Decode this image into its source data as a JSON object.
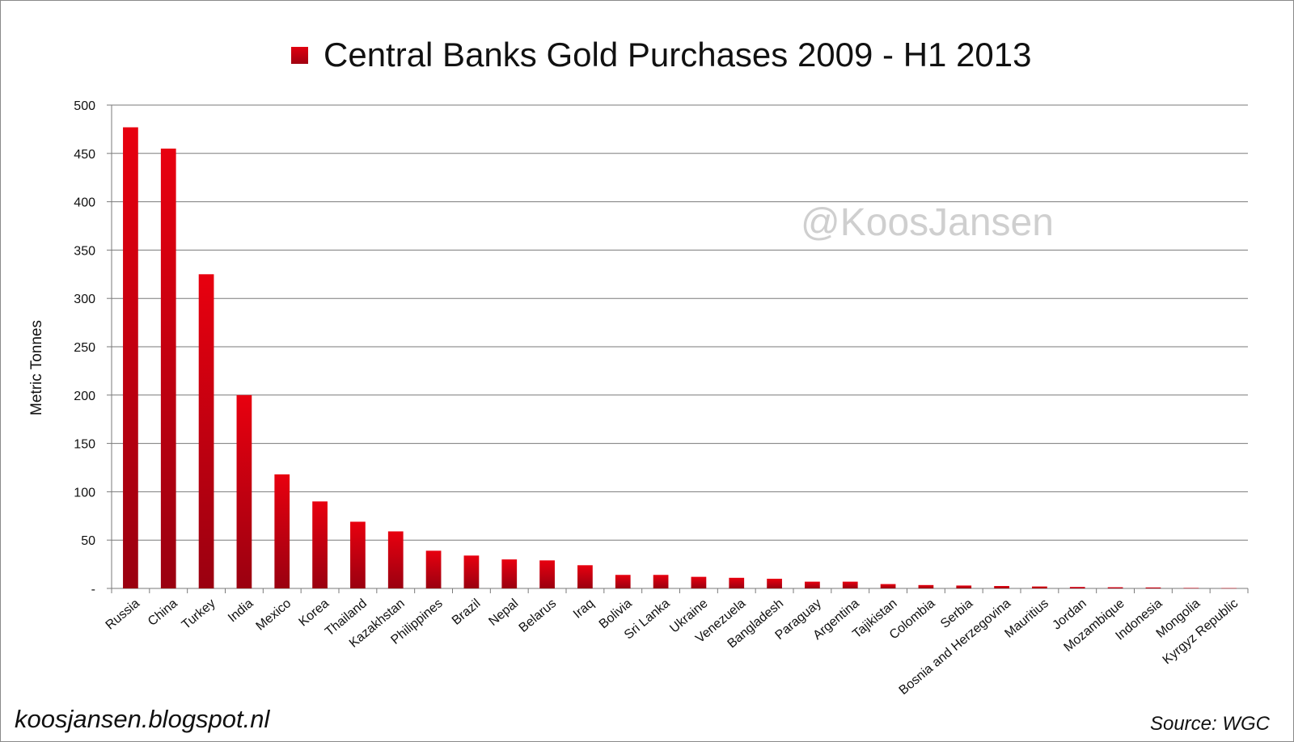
{
  "chart_data": {
    "type": "bar",
    "title": "Central Banks Gold Purchases 2009 - H1 2013",
    "legend": "Central Banks Gold Purchases 2009 - H1 2013",
    "ylabel": "Metric Tonnes",
    "xlabel": "",
    "ylim": [
      0,
      500
    ],
    "yticks": [
      {
        "v": 0,
        "label": "-"
      },
      {
        "v": 50,
        "label": "50"
      },
      {
        "v": 100,
        "label": "100"
      },
      {
        "v": 150,
        "label": "150"
      },
      {
        "v": 200,
        "label": "200"
      },
      {
        "v": 250,
        "label": "250"
      },
      {
        "v": 300,
        "label": "300"
      },
      {
        "v": 350,
        "label": "350"
      },
      {
        "v": 400,
        "label": "400"
      },
      {
        "v": 450,
        "label": "450"
      },
      {
        "v": 500,
        "label": "500"
      }
    ],
    "grid": true,
    "legend_position": "top",
    "bar_color_top": "#e8000f",
    "bar_color_bottom": "#9a0010",
    "categories": [
      "Russia",
      "China",
      "Turkey",
      "India",
      "Mexico",
      "Korea",
      "Thailand",
      "Kazakhstan",
      "Philippines",
      "Brazil",
      "Nepal",
      "Belarus",
      "Iraq",
      "Bolivia",
      "Sri Lanka",
      "Ukraine",
      "Venezuela",
      "Bangladesh",
      "Paraguay",
      "Argentina",
      "Tajikistan",
      "Colombia",
      "Serbia",
      "Bosnia and Herzegovina",
      "Mauritius",
      "Jordan",
      "Mozambique",
      "Indonesia",
      "Mongolia",
      "Kyrgyz Republic"
    ],
    "values": [
      477,
      455,
      325,
      200,
      118,
      90,
      69,
      59,
      39,
      34,
      30,
      29,
      24,
      14,
      14,
      12,
      11,
      10,
      7,
      7,
      4.5,
      3.5,
      3,
      2.5,
      2,
      1.5,
      1.2,
      1,
      0.5,
      0.3
    ]
  },
  "watermark": "@KoosJansen",
  "footer": {
    "blog": "koosjansen.blogspot.nl",
    "source": "Source: WGC"
  }
}
